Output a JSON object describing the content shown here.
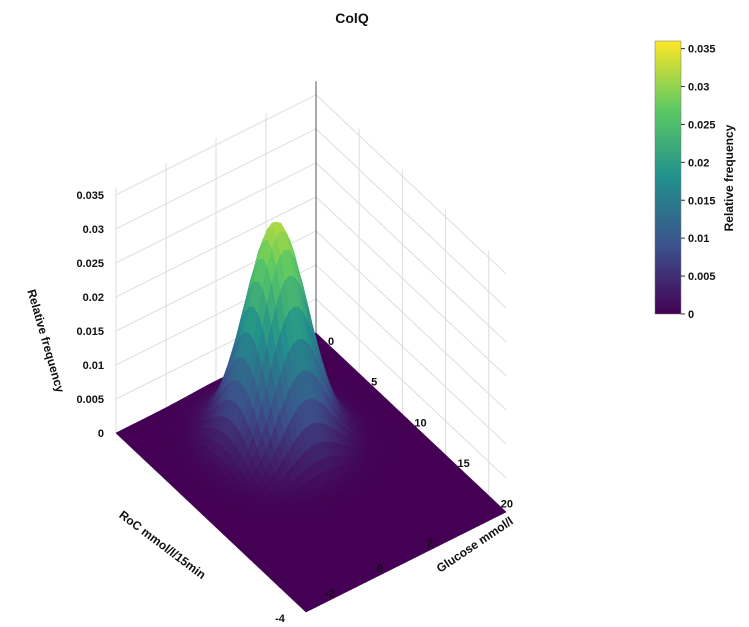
{
  "chart_data": {
    "type": "surface",
    "title": "ColQ",
    "x_axis": {
      "label": "RoC mmol/l/15min",
      "range": [
        -4,
        4
      ],
      "ticks": [
        -4,
        -2,
        0,
        2
      ]
    },
    "y_axis": {
      "label": "Glucose mmol/l",
      "range": [
        0,
        22
      ],
      "ticks": [
        0,
        5,
        10,
        15,
        20
      ]
    },
    "z_axis": {
      "label": "Relative frequency",
      "range": [
        0,
        0.036
      ],
      "ticks": [
        "0",
        "0.005",
        "0.01",
        "0.015",
        "0.02",
        "0.025",
        "0.03",
        "0.035"
      ]
    },
    "peak": {
      "roc": 0.0,
      "glucose": 7,
      "relative_frequency": 0.032
    },
    "colorbar": {
      "title": "Relative frequency",
      "range": [
        0,
        0.036
      ],
      "ticks": [
        "0",
        "0.005",
        "0.01",
        "0.015",
        "0.02",
        "0.025",
        "0.03",
        "0.035"
      ]
    },
    "colorscale": [
      "#440154",
      "#3b528b",
      "#21908d",
      "#5dc963",
      "#fde725"
    ],
    "grid": true
  }
}
